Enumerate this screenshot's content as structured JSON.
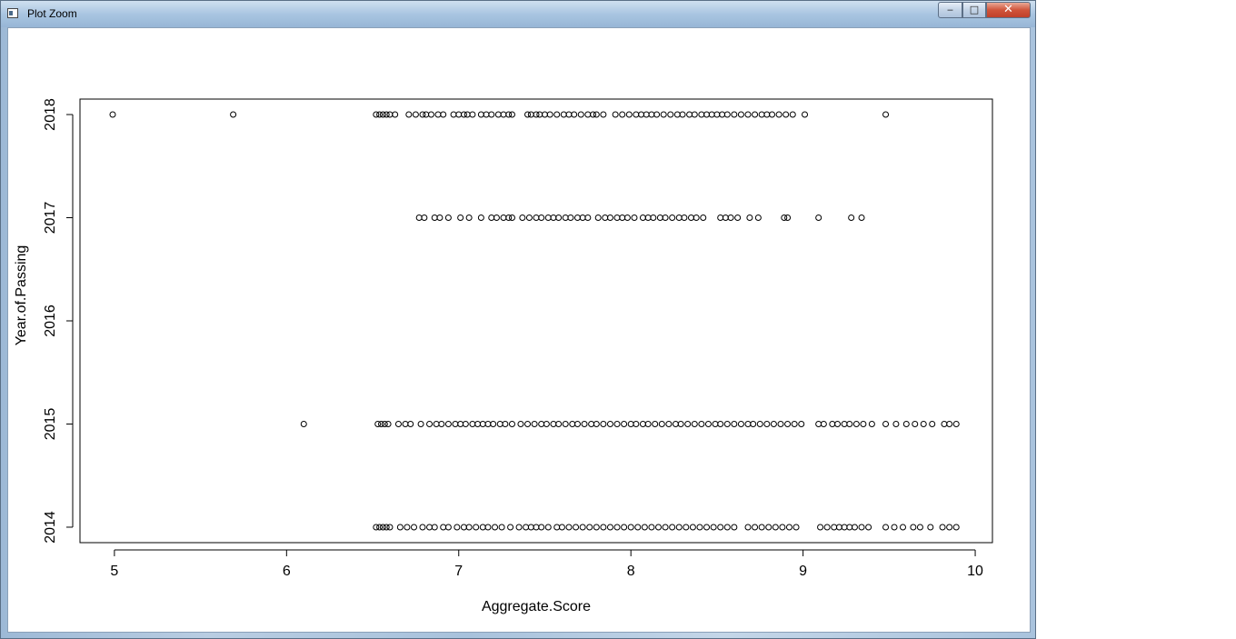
{
  "window": {
    "title": "Plot Zoom",
    "minimize_glyph": "‒",
    "maximize_glyph": "□",
    "close_glyph": "✕"
  },
  "chart_data": {
    "type": "scatter",
    "title": "",
    "xlabel": "Aggregate.Score",
    "ylabel": "Year.of.Passing",
    "xlim": [
      4.8,
      10.1
    ],
    "ylim": [
      2013.85,
      2018.15
    ],
    "xticks": [
      "5",
      "6",
      "7",
      "8",
      "9",
      "10"
    ],
    "yticks": [
      "2014",
      "2015",
      "2016",
      "2017",
      "2018"
    ],
    "marker": "open-circle",
    "grid": false,
    "series": [
      {
        "year": 2018,
        "x": [
          4.99,
          5.69,
          6.52,
          6.54,
          6.56,
          6.58,
          6.6,
          6.63,
          6.71,
          6.75,
          6.79,
          6.81,
          6.84,
          6.88,
          6.91,
          6.97,
          7.0,
          7.03,
          7.05,
          7.08,
          7.13,
          7.16,
          7.19,
          7.23,
          7.26,
          7.29,
          7.31,
          7.4,
          7.42,
          7.45,
          7.47,
          7.5,
          7.53,
          7.57,
          7.61,
          7.64,
          7.67,
          7.71,
          7.75,
          7.78,
          7.8,
          7.84,
          7.91,
          7.95,
          7.99,
          8.03,
          8.06,
          8.09,
          8.12,
          8.15,
          8.19,
          8.23,
          8.27,
          8.3,
          8.34,
          8.37,
          8.41,
          8.44,
          8.47,
          8.5,
          8.53,
          8.56,
          8.6,
          8.64,
          8.68,
          8.72,
          8.76,
          8.79,
          8.82,
          8.86,
          8.9,
          8.94,
          9.01,
          9.48
        ]
      },
      {
        "year": 2017,
        "x": [
          6.77,
          6.8,
          6.86,
          6.89,
          6.94,
          7.01,
          7.06,
          7.13,
          7.19,
          7.22,
          7.26,
          7.29,
          7.31,
          7.37,
          7.41,
          7.45,
          7.48,
          7.52,
          7.55,
          7.58,
          7.62,
          7.65,
          7.69,
          7.72,
          7.75,
          7.81,
          7.85,
          7.88,
          7.92,
          7.95,
          7.98,
          8.02,
          8.07,
          8.1,
          8.13,
          8.17,
          8.2,
          8.24,
          8.28,
          8.31,
          8.35,
          8.38,
          8.42,
          8.52,
          8.55,
          8.58,
          8.62,
          8.69,
          8.74,
          8.89,
          8.91,
          9.09,
          9.28,
          9.34
        ]
      },
      {
        "year": 2015,
        "x": [
          6.1,
          6.53,
          6.55,
          6.57,
          6.59,
          6.65,
          6.69,
          6.72,
          6.78,
          6.83,
          6.87,
          6.9,
          6.94,
          6.98,
          7.01,
          7.04,
          7.08,
          7.11,
          7.14,
          7.17,
          7.2,
          7.24,
          7.27,
          7.31,
          7.36,
          7.4,
          7.44,
          7.48,
          7.51,
          7.55,
          7.58,
          7.62,
          7.66,
          7.69,
          7.73,
          7.77,
          7.8,
          7.84,
          7.88,
          7.92,
          7.96,
          8.0,
          8.03,
          8.07,
          8.1,
          8.14,
          8.18,
          8.22,
          8.26,
          8.29,
          8.33,
          8.37,
          8.41,
          8.45,
          8.49,
          8.52,
          8.56,
          8.6,
          8.64,
          8.68,
          8.71,
          8.75,
          8.79,
          8.83,
          8.87,
          8.91,
          8.95,
          8.99,
          9.09,
          9.12,
          9.17,
          9.2,
          9.24,
          9.27,
          9.31,
          9.35,
          9.4,
          9.48,
          9.54,
          9.6,
          9.65,
          9.7,
          9.75,
          9.82,
          9.85,
          9.89
        ]
      },
      {
        "year": 2014,
        "x": [
          6.52,
          6.54,
          6.56,
          6.58,
          6.6,
          6.66,
          6.7,
          6.74,
          6.79,
          6.83,
          6.86,
          6.91,
          6.94,
          6.99,
          7.03,
          7.06,
          7.1,
          7.14,
          7.17,
          7.21,
          7.25,
          7.3,
          7.35,
          7.39,
          7.42,
          7.45,
          7.48,
          7.52,
          7.57,
          7.6,
          7.64,
          7.68,
          7.72,
          7.76,
          7.8,
          7.84,
          7.88,
          7.92,
          7.96,
          8.0,
          8.04,
          8.08,
          8.12,
          8.16,
          8.2,
          8.24,
          8.28,
          8.32,
          8.36,
          8.4,
          8.44,
          8.48,
          8.52,
          8.56,
          8.6,
          8.68,
          8.72,
          8.76,
          8.8,
          8.84,
          8.88,
          8.92,
          8.96,
          9.1,
          9.14,
          9.18,
          9.21,
          9.24,
          9.27,
          9.3,
          9.34,
          9.38,
          9.48,
          9.53,
          9.58,
          9.64,
          9.68,
          9.74,
          9.81,
          9.85,
          9.89
        ]
      }
    ]
  }
}
